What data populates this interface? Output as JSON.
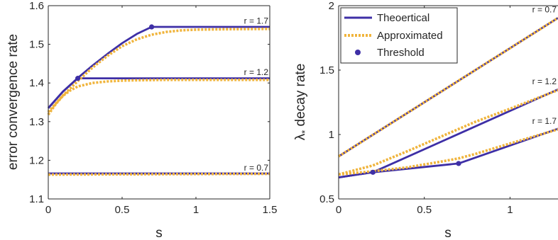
{
  "chart_data": [
    {
      "type": "line",
      "xlabel": "s",
      "ylabel": "error convergence rate",
      "xlim": [
        0,
        1.5
      ],
      "ylim": [
        1.1,
        1.6
      ],
      "xticks": [
        0,
        0.5,
        1,
        1.5
      ],
      "xtick_labels": [
        "0",
        "0.5",
        "1",
        "1.5"
      ],
      "yticks": [
        1.1,
        1.2,
        1.3,
        1.4,
        1.5,
        1.6
      ],
      "ytick_labels": [
        "1.1",
        "1.2",
        "1.3",
        "1.4",
        "1.5",
        "1.6"
      ],
      "colors": {
        "theoretical": "#3e2fa6",
        "approximated": "#f0b43c",
        "threshold": "#3e2fa6"
      },
      "series": [
        {
          "kind": "theoretical",
          "annotation": "r = 1.7",
          "annotation_at": [
            1.5,
            1.548
          ],
          "x": [
            0,
            0.1,
            0.2,
            0.3,
            0.4,
            0.5,
            0.6,
            0.7,
            1.0,
            1.5
          ],
          "y": [
            1.335,
            1.378,
            1.413,
            1.445,
            1.475,
            1.503,
            1.527,
            1.545,
            1.545,
            1.545
          ]
        },
        {
          "kind": "approximated",
          "x": [
            0,
            0.1,
            0.2,
            0.3,
            0.4,
            0.5,
            0.6,
            0.7,
            0.8,
            0.9,
            1.0,
            1.2,
            1.5
          ],
          "y": [
            1.325,
            1.368,
            1.405,
            1.44,
            1.47,
            1.495,
            1.513,
            1.525,
            1.532,
            1.536,
            1.538,
            1.539,
            1.54
          ]
        },
        {
          "kind": "theoretical",
          "annotation": "r = 1.2",
          "annotation_at": [
            1.5,
            1.415
          ],
          "x": [
            0,
            0.1,
            0.2,
            0.5,
            1.0,
            1.5
          ],
          "y": [
            1.335,
            1.378,
            1.412,
            1.412,
            1.412,
            1.412
          ]
        },
        {
          "kind": "approximated",
          "x": [
            0,
            0.05,
            0.1,
            0.15,
            0.2,
            0.3,
            0.4,
            0.5,
            0.6,
            0.8,
            1.0,
            1.5
          ],
          "y": [
            1.318,
            1.345,
            1.367,
            1.381,
            1.391,
            1.4,
            1.404,
            1.406,
            1.407,
            1.408,
            1.408,
            1.408
          ]
        },
        {
          "kind": "theoretical",
          "annotation": "r = 0.7",
          "annotation_at": [
            1.5,
            1.168
          ],
          "x": [
            0,
            1.5
          ],
          "y": [
            1.166,
            1.166
          ]
        },
        {
          "kind": "approximated",
          "x": [
            0,
            1.5
          ],
          "y": [
            1.163,
            1.165
          ]
        }
      ],
      "thresholds": [
        {
          "x": 0.7,
          "y": 1.545
        },
        {
          "x": 0.2,
          "y": 1.412
        }
      ]
    },
    {
      "type": "line",
      "xlabel": "s",
      "ylabel_symbol": "λ",
      "ylabel_subscript": "*",
      "ylabel_text": " decay rate",
      "xlim": [
        0,
        1.28
      ],
      "ylim": [
        0.5,
        2
      ],
      "xticks": [
        0,
        0.5,
        1
      ],
      "xtick_labels": [
        "0",
        "0.5",
        "1"
      ],
      "yticks": [
        0.5,
        1,
        1.5,
        2
      ],
      "ytick_labels": [
        "0.5",
        "1",
        "1.5",
        "2"
      ],
      "legend": {
        "placement": "top-left",
        "entries": [
          {
            "kind": "theoretical",
            "label": "Theoertical"
          },
          {
            "kind": "approximated",
            "label": "Approximated"
          },
          {
            "kind": "threshold",
            "label": "Threshold"
          }
        ]
      },
      "series": [
        {
          "kind": "theoretical",
          "annotation": "r = 0.7",
          "annotation_at": [
            1.28,
            1.93
          ],
          "x": [
            0,
            1.28
          ],
          "y": [
            0.83,
            1.905
          ]
        },
        {
          "kind": "approximated",
          "x": [
            0,
            1.28
          ],
          "y": [
            0.83,
            1.905
          ]
        },
        {
          "kind": "theoretical",
          "annotation": "r = 1.2",
          "annotation_at": [
            1.28,
            1.375
          ],
          "x": [
            0,
            0.2,
            1.28
          ],
          "y": [
            0.667,
            0.707,
            1.35
          ]
        },
        {
          "kind": "approximated",
          "x": [
            0,
            0.2,
            0.4,
            0.6,
            0.8,
            1.0,
            1.28
          ],
          "y": [
            0.69,
            0.76,
            0.87,
            0.985,
            1.1,
            1.2,
            1.345
          ]
        },
        {
          "kind": "theoretical",
          "annotation": "r = 1.7",
          "annotation_at": [
            1.28,
            1.065
          ],
          "x": [
            0,
            0.2,
            0.7,
            1.28
          ],
          "y": [
            0.667,
            0.707,
            0.775,
            1.045
          ]
        },
        {
          "kind": "approximated",
          "x": [
            0,
            0.2,
            0.4,
            0.6,
            0.7,
            0.8,
            1.0,
            1.28
          ],
          "y": [
            0.69,
            0.715,
            0.745,
            0.79,
            0.815,
            0.85,
            0.93,
            1.04
          ]
        }
      ],
      "thresholds": [
        {
          "x": 0.2,
          "y": 0.707
        },
        {
          "x": 0.7,
          "y": 0.775
        }
      ]
    }
  ]
}
